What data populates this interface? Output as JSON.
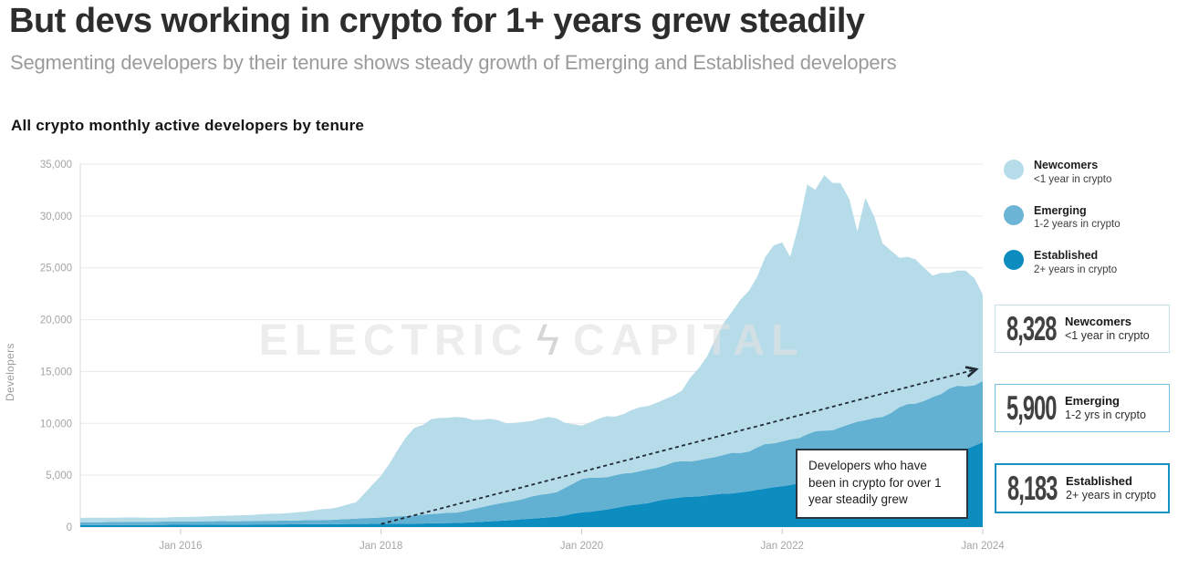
{
  "header": {
    "title": "But devs working in crypto for 1+ years grew steadily",
    "subtitle": "Segmenting developers by their tenure shows steady growth of Emerging and Established developers"
  },
  "watermark": {
    "left": "ELECTRIC",
    "bolt": "ϟ",
    "right": "CAPITAL"
  },
  "legend": [
    {
      "name": "Newcomers",
      "desc": "<1 year in crypto",
      "color": "#b7dce9"
    },
    {
      "name": "Emerging",
      "desc": "1-2 years in crypto",
      "color": "#6cb5d5"
    },
    {
      "name": "Established",
      "desc": "2+ years in crypto",
      "color": "#0d8dbf"
    }
  ],
  "stats": [
    {
      "value": "8,328",
      "name": "Newcomers",
      "desc": "<1 year in crypto",
      "border": "#c2e0ec",
      "border_width": "1px"
    },
    {
      "value": "5,900",
      "name": "Emerging",
      "desc": "1-2 yrs in crypto",
      "border": "#79bcd9",
      "border_width": "1px"
    },
    {
      "value": "8,183",
      "name": "Established",
      "desc": "2+ years in crypto",
      "border": "#1791c1",
      "border_width": "2px"
    }
  ],
  "annotation": {
    "text": "Developers who have been in crypto for over 1 year steadily grew"
  },
  "chart_data": {
    "type": "area",
    "stacked": true,
    "title": "All crypto monthly active developers by tenure",
    "ylabel": "Developers",
    "legend_position": "top-right",
    "grid": true,
    "x_axis": {
      "range": [
        2015,
        2024
      ],
      "ticks": [
        2016,
        2018,
        2020,
        2022,
        2024
      ],
      "tick_labels": [
        "Jan 2016",
        "Jan 2018",
        "Jan 2020",
        "Jan 2022",
        "Jan 2024"
      ]
    },
    "y_axis": {
      "range": [
        0,
        35000
      ],
      "ticks": [
        0,
        5000,
        10000,
        15000,
        20000,
        25000,
        30000,
        35000
      ],
      "tick_labels": [
        "0",
        "5,000",
        "10,000",
        "15,000",
        "20,000",
        "25,000",
        "30,000",
        "35,000"
      ]
    },
    "x": [
      2015.0,
      2015.25,
      2015.5,
      2015.75,
      2016.0,
      2016.25,
      2016.5,
      2016.75,
      2017.0,
      2017.25,
      2017.5,
      2017.75,
      2018.0,
      2018.17,
      2018.33,
      2018.5,
      2018.75,
      2019.0,
      2019.25,
      2019.5,
      2019.75,
      2020.0,
      2020.25,
      2020.5,
      2020.75,
      2021.0,
      2021.17,
      2021.33,
      2021.5,
      2021.67,
      2021.83,
      2022.0,
      2022.08,
      2022.17,
      2022.25,
      2022.33,
      2022.42,
      2022.5,
      2022.58,
      2022.67,
      2022.75,
      2022.83,
      2022.92,
      2023.0,
      2023.17,
      2023.33,
      2023.5,
      2023.67,
      2023.83,
      2023.92,
      2024.0
    ],
    "series": [
      {
        "name": "Established",
        "desc": "2+ years in crypto",
        "color": "#0d8dbf",
        "values": [
          180,
          190,
          200,
          210,
          220,
          230,
          240,
          250,
          260,
          270,
          280,
          300,
          320,
          330,
          340,
          360,
          400,
          500,
          650,
          800,
          1000,
          1400,
          1700,
          2100,
          2500,
          2900,
          3000,
          3100,
          3300,
          3450,
          3700,
          4000,
          4100,
          4200,
          4300,
          4400,
          4500,
          4600,
          4700,
          4800,
          4900,
          5000,
          5100,
          5300,
          5700,
          6100,
          6600,
          7100,
          7600,
          7900,
          8183
        ]
      },
      {
        "name": "Emerging",
        "desc": "1-2 years in crypto",
        "color": "#63b1d2",
        "values": [
          280,
          290,
          300,
          300,
          310,
          320,
          330,
          340,
          360,
          380,
          420,
          500,
          620,
          700,
          800,
          900,
          1000,
          1400,
          1750,
          2100,
          2400,
          3200,
          3200,
          3100,
          3300,
          3400,
          3500,
          3600,
          3800,
          3950,
          4150,
          4300,
          4400,
          4500,
          4600,
          4700,
          4800,
          4900,
          5000,
          5100,
          5200,
          5300,
          5400,
          5500,
          5700,
          5900,
          6000,
          6100,
          6050,
          6000,
          5900
        ]
      },
      {
        "name": "Newcomers",
        "desc": "<1 year in crypto",
        "color": "#b7dce9",
        "values": [
          420,
          430,
          420,
          400,
          420,
          480,
          530,
          610,
          680,
          850,
          1100,
          1550,
          4060,
          6470,
          8360,
          9240,
          9100,
          8600,
          7600,
          7400,
          7100,
          5100,
          5800,
          5900,
          6300,
          6700,
          9000,
          11300,
          13600,
          15600,
          18150,
          19000,
          18000,
          20800,
          24100,
          23200,
          24100,
          23500,
          23900,
          22100,
          18100,
          20900,
          19300,
          16700,
          14900,
          13400,
          12100,
          11300,
          11050,
          10100,
          8328
        ]
      }
    ],
    "trend_arrow": {
      "x1": 2018.0,
      "y1": 300,
      "x2": 2023.93,
      "y2": 15200,
      "style": "dashed",
      "color": "#1f2a35"
    }
  }
}
